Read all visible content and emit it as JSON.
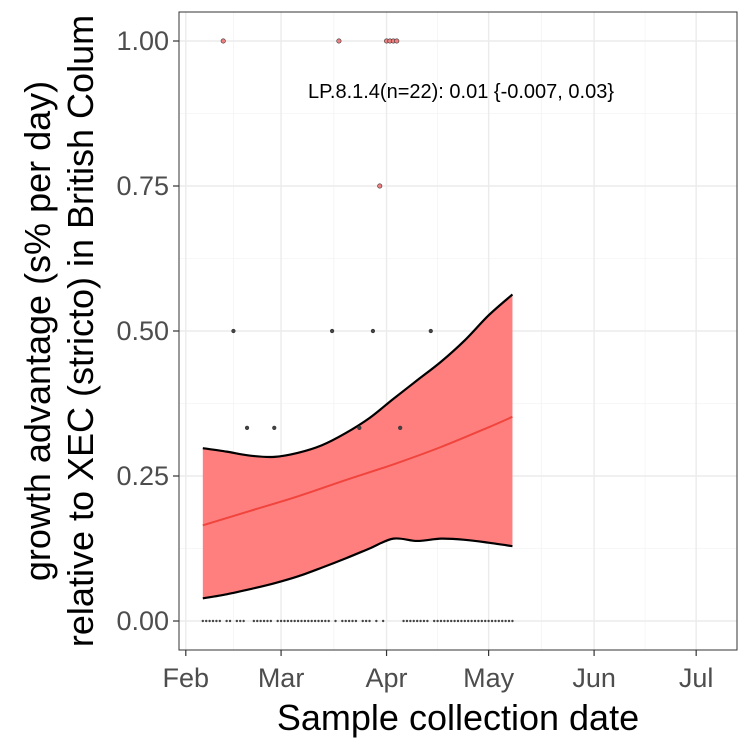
{
  "chart_data": {
    "type": "line",
    "title": "",
    "xlabel": "Sample collection date",
    "ylabel_lines": [
      "growth advantage (s% per day)",
      "relative to XEC (stricto) in British Colum"
    ],
    "annotation": "LP.8.1.4(n=22): 0.01 {-0.007, 0.03}",
    "xlim": [
      "2025-01-30",
      "2025-07-13"
    ],
    "ylim": [
      -0.05,
      1.05
    ],
    "grid": true,
    "x_ticks": [
      {
        "label": "Feb",
        "date": "2025-02-01"
      },
      {
        "label": "Mar",
        "date": "2025-03-01"
      },
      {
        "label": "Apr",
        "date": "2025-04-01"
      },
      {
        "label": "May",
        "date": "2025-05-01"
      },
      {
        "label": "Jun",
        "date": "2025-06-01"
      },
      {
        "label": "Jul",
        "date": "2025-07-01"
      }
    ],
    "y_ticks": [
      {
        "label": "0.00",
        "value": 0.0
      },
      {
        "label": "0.25",
        "value": 0.25
      },
      {
        "label": "0.50",
        "value": 0.5
      },
      {
        "label": "0.75",
        "value": 0.75
      },
      {
        "label": "1.00",
        "value": 1.0
      }
    ],
    "colors": {
      "ribbon": "#ff7f7f",
      "fit_line": "#f0443c",
      "bounds": "#000000",
      "points": "#444444",
      "highlight_points": "#f08080",
      "grid_major": "#ebebeb",
      "grid_minor": "#f4f4f4",
      "panel_border": "#333333"
    },
    "series": [
      {
        "type": "fit",
        "x": [
          "2025-02-06",
          "2025-02-20",
          "2025-03-06",
          "2025-03-20",
          "2025-04-03",
          "2025-04-17",
          "2025-05-01",
          "2025-05-08"
        ],
        "y": [
          0.165,
          0.19,
          0.215,
          0.243,
          0.27,
          0.3,
          0.334,
          0.352
        ]
      },
      {
        "type": "upper_bound",
        "x": [
          "2025-02-06",
          "2025-02-13",
          "2025-02-20",
          "2025-02-27",
          "2025-03-06",
          "2025-03-13",
          "2025-03-20",
          "2025-03-27",
          "2025-04-03",
          "2025-04-10",
          "2025-04-17",
          "2025-04-24",
          "2025-05-01",
          "2025-05-08"
        ],
        "y": [
          0.298,
          0.292,
          0.285,
          0.283,
          0.29,
          0.303,
          0.324,
          0.35,
          0.383,
          0.415,
          0.447,
          0.484,
          0.527,
          0.563
        ]
      },
      {
        "type": "lower_bound",
        "x": [
          "2025-02-06",
          "2025-02-13",
          "2025-02-20",
          "2025-02-27",
          "2025-03-06",
          "2025-03-13",
          "2025-03-20",
          "2025-03-27",
          "2025-04-03",
          "2025-04-10",
          "2025-04-17",
          "2025-04-24",
          "2025-05-01",
          "2025-05-08"
        ],
        "y": [
          0.039,
          0.046,
          0.055,
          0.065,
          0.077,
          0.092,
          0.108,
          0.125,
          0.142,
          0.138,
          0.142,
          0.14,
          0.135,
          0.129
        ]
      },
      {
        "type": "points",
        "x": [
          "2025-02-12",
          "2025-02-15",
          "2025-02-19",
          "2025-02-27",
          "2025-03-16",
          "2025-03-18",
          "2025-03-24",
          "2025-03-28",
          "2025-03-30",
          "2025-04-01",
          "2025-04-02",
          "2025-04-03",
          "2025-04-04",
          "2025-04-05",
          "2025-04-14"
        ],
        "y": [
          1.0,
          0.5,
          0.333,
          0.333,
          0.5,
          1.0,
          0.333,
          0.5,
          0.75,
          1.0,
          1.0,
          1.0,
          1.0,
          0.333,
          0.5
        ]
      },
      {
        "type": "zero_points",
        "x": [
          "2025-02-06",
          "2025-02-07",
          "2025-02-08",
          "2025-02-09",
          "2025-02-10",
          "2025-02-11",
          "2025-02-13",
          "2025-02-14",
          "2025-02-16",
          "2025-02-17",
          "2025-02-18",
          "2025-02-21",
          "2025-02-22",
          "2025-02-23",
          "2025-02-24",
          "2025-02-25",
          "2025-02-26",
          "2025-02-28",
          "2025-03-01",
          "2025-03-02",
          "2025-03-03",
          "2025-03-04",
          "2025-03-05",
          "2025-03-06",
          "2025-03-07",
          "2025-03-08",
          "2025-03-09",
          "2025-03-10",
          "2025-03-11",
          "2025-03-12",
          "2025-03-13",
          "2025-03-14",
          "2025-03-15",
          "2025-03-17",
          "2025-03-19",
          "2025-03-20",
          "2025-03-21",
          "2025-03-22",
          "2025-03-23",
          "2025-03-25",
          "2025-03-26",
          "2025-03-27",
          "2025-03-29",
          "2025-03-31",
          "2025-04-06",
          "2025-04-07",
          "2025-04-08",
          "2025-04-09",
          "2025-04-10",
          "2025-04-11",
          "2025-04-12",
          "2025-04-13",
          "2025-04-15",
          "2025-04-16",
          "2025-04-17",
          "2025-04-18",
          "2025-04-19",
          "2025-04-20",
          "2025-04-21",
          "2025-04-22",
          "2025-04-23",
          "2025-04-24",
          "2025-04-25",
          "2025-04-26",
          "2025-04-27",
          "2025-04-28",
          "2025-04-29",
          "2025-04-30",
          "2025-05-01",
          "2025-05-02",
          "2025-05-03",
          "2025-05-04",
          "2025-05-05",
          "2025-05-06",
          "2025-05-07",
          "2025-05-08"
        ],
        "y": 0.0
      }
    ]
  }
}
